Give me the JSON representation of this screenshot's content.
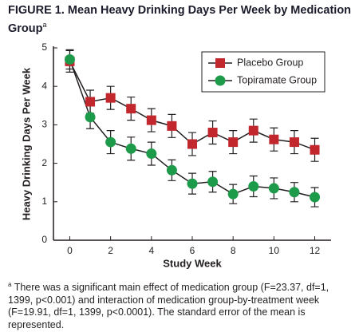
{
  "chart_data": {
    "type": "line",
    "title": "FIGURE 1. Mean Heavy Drinking Days Per Week by Medication Group",
    "title_note": "a",
    "x_label": "Study Week",
    "y_label": "Heavy Drinking Days Per Week",
    "x": [
      0,
      1,
      2,
      3,
      4,
      5,
      6,
      7,
      8,
      9,
      10,
      11,
      12
    ],
    "series": [
      {
        "name": "Placebo Group",
        "color": "#c1272d",
        "marker": "square",
        "values": [
          4.65,
          3.6,
          3.7,
          3.42,
          3.12,
          2.97,
          2.5,
          2.8,
          2.55,
          2.85,
          2.62,
          2.55,
          2.35
        ],
        "errors": [
          0.28,
          0.3,
          0.3,
          0.3,
          0.3,
          0.3,
          0.3,
          0.3,
          0.3,
          0.3,
          0.3,
          0.3,
          0.3
        ]
      },
      {
        "name": "Topiramate Group",
        "color": "#1e9b4a",
        "marker": "circle",
        "values": [
          4.7,
          3.2,
          2.55,
          2.38,
          2.25,
          1.82,
          1.47,
          1.52,
          1.2,
          1.4,
          1.35,
          1.25,
          1.12
        ],
        "errors": [
          0.25,
          0.3,
          0.3,
          0.3,
          0.3,
          0.27,
          0.27,
          0.27,
          0.25,
          0.27,
          0.27,
          0.25,
          0.25
        ]
      }
    ],
    "xlim": [
      -0.8,
      12.8
    ],
    "xticks": [
      0,
      2,
      4,
      6,
      8,
      10,
      12
    ],
    "ylim": [
      0,
      5
    ],
    "yticks": [
      0,
      1,
      2,
      3,
      4,
      5
    ],
    "legend": "upper right",
    "footnote": {
      "marker": "a",
      "text": "There was a significant main effect of medication group (F=23.37, df=1, 1399, p<0.001) and interaction of medication group-by-treatment week (F=19.91, df=1, 1399, p<0.0001). The standard error of the mean is represented."
    }
  }
}
